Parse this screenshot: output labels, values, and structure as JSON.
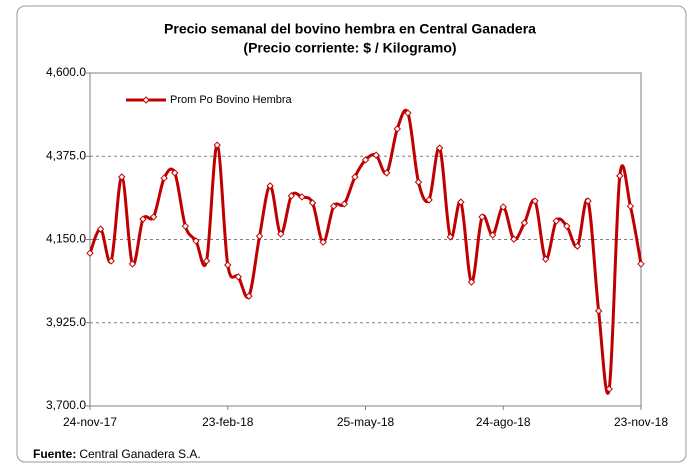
{
  "chart_data": {
    "type": "line",
    "title": "Precio semanal del bovino  hembra en Central Ganadera",
    "subtitle": "(Precio corriente: $ / Kilogramo)",
    "source_label": "Fuente:",
    "source": "Central Ganadera S.A.",
    "categories": [
      "24-nov-17",
      null,
      null,
      null,
      null,
      null,
      null,
      null,
      null,
      null,
      null,
      null,
      null,
      "23-feb-18",
      null,
      null,
      null,
      null,
      null,
      null,
      null,
      null,
      null,
      null,
      null,
      null,
      "25-may-18",
      null,
      null,
      null,
      null,
      null,
      null,
      null,
      null,
      null,
      null,
      null,
      null,
      "24-ago-18",
      null,
      null,
      null,
      null,
      null,
      null,
      null,
      null,
      null,
      null,
      null,
      null,
      "23-nov-18"
    ],
    "series": [
      {
        "name": "Prom Po Bovino Hembra",
        "color": "#c00000",
        "values": [
          4113,
          4178,
          4092,
          4319,
          4084,
          4205,
          4211,
          4316,
          4330,
          4186,
          4146,
          4092,
          4405,
          4081,
          4049,
          3997,
          4159,
          4295,
          4165,
          4268,
          4265,
          4249,
          4143,
          4240,
          4246,
          4319,
          4365,
          4378,
          4330,
          4449,
          4492,
          4305,
          4257,
          4397,
          4157,
          4251,
          4035,
          4211,
          4162,
          4238,
          4151,
          4195,
          4254,
          4097,
          4200,
          4186,
          4132,
          4254,
          3957,
          3746,
          4322,
          4240,
          4084
        ]
      }
    ],
    "ylim": [
      3700,
      4600
    ],
    "yticks": [
      {
        "value": 3700,
        "label": "3,700.0"
      },
      {
        "value": 3925,
        "label": "3,925.0"
      },
      {
        "value": 4150,
        "label": "4,150.0"
      },
      {
        "value": 4375,
        "label": "4,375.0"
      },
      {
        "value": 4600,
        "label": "4,600.0"
      }
    ],
    "grid": true,
    "legend": "top-left"
  }
}
